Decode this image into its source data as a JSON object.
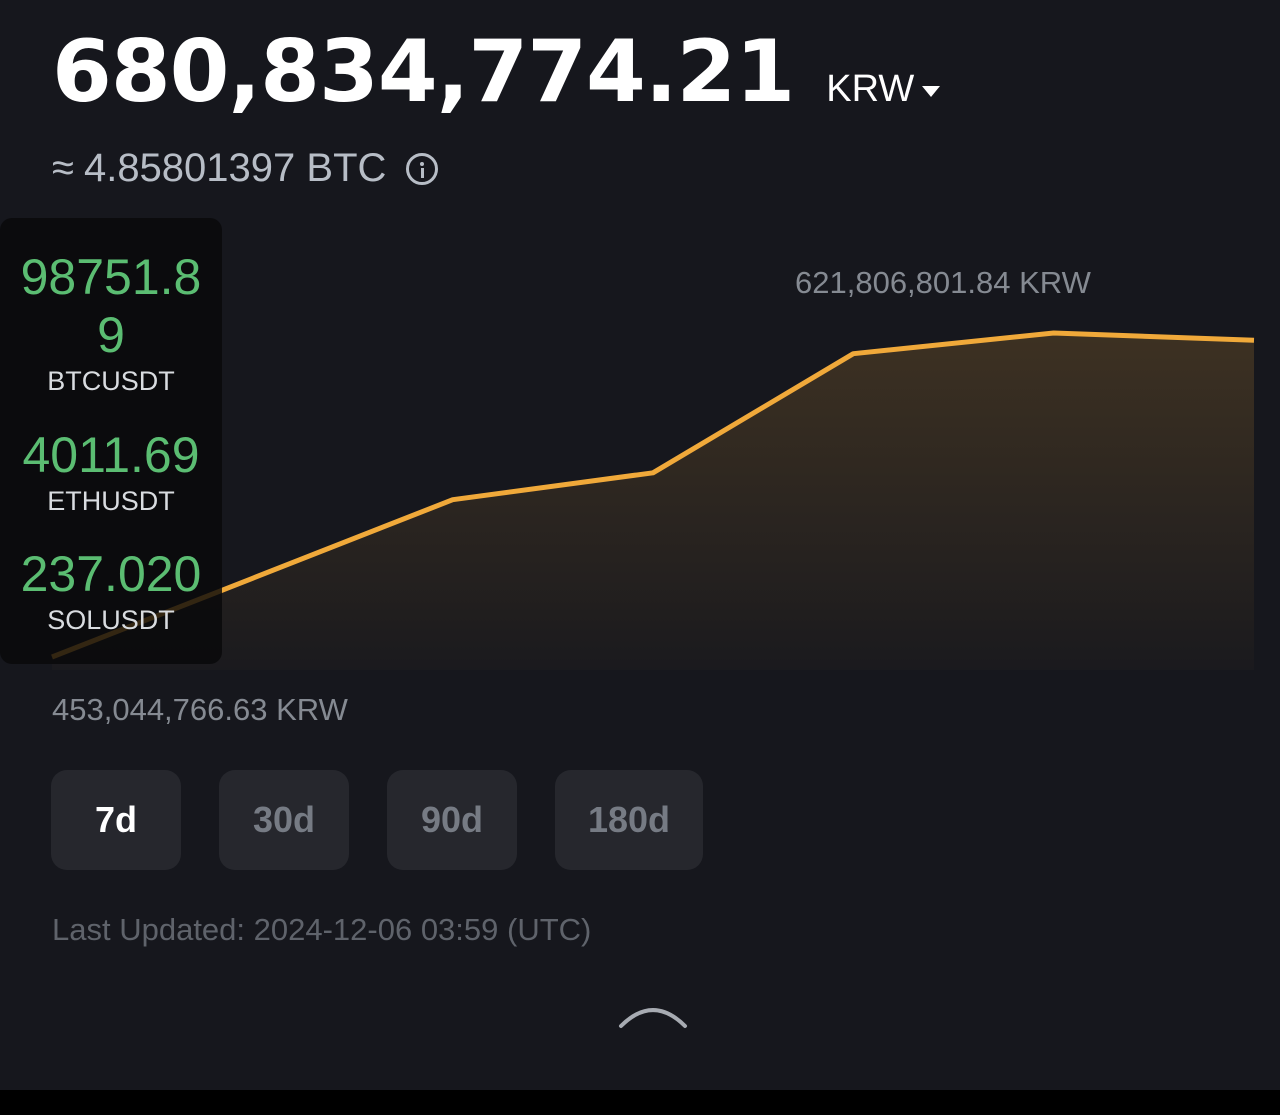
{
  "balance": {
    "amount": "680,834,774.21",
    "currency": "KRW",
    "approx_prefix": "≈",
    "btc_equivalent": "4.85801397 BTC"
  },
  "tickers": [
    {
      "price": "98751.89",
      "symbol": "BTCUSDT"
    },
    {
      "price": "4011.69",
      "symbol": "ETHUSDT"
    },
    {
      "price": "237.020",
      "symbol": "SOLUSDT"
    }
  ],
  "chart": {
    "max_label": "621,806,801.84 KRW",
    "min_label": "453,044,766.63 KRW",
    "line_color": "#f0a93a"
  },
  "chart_data": {
    "type": "area",
    "y": [
      453044766.63,
      494000000,
      535000000,
      549000000,
      611000000,
      621806801.84,
      618000000
    ],
    "ylim": [
      453044766.63,
      621806801.84
    ],
    "xlabel": "",
    "ylabel": "",
    "title": ""
  },
  "period_tabs": [
    {
      "label": "7d",
      "active": true
    },
    {
      "label": "30d",
      "active": false
    },
    {
      "label": "90d",
      "active": false
    },
    {
      "label": "180d",
      "active": false
    }
  ],
  "last_updated": "Last Updated: 2024-12-06 03:59 (UTC)",
  "icons": {
    "currency_caret": "caret-down-icon",
    "info": "info-icon",
    "collapse": "chevron-up-icon"
  }
}
